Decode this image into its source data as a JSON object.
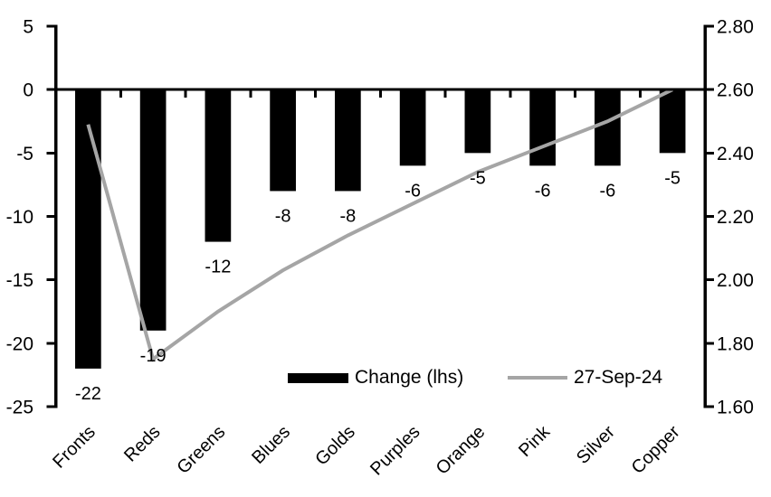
{
  "chart_data": {
    "type": "combo",
    "title": "",
    "categories": [
      "Fronts",
      "Reds",
      "Greens",
      "Blues",
      "Golds",
      "Purples",
      "Orange",
      "Pink",
      "Silver",
      "Copper"
    ],
    "series": [
      {
        "name": "Change (lhs)",
        "type": "bar",
        "axis": "left",
        "color": "#000000",
        "values": [
          -22,
          -19,
          -12,
          -8,
          -8,
          -6,
          -5,
          -6,
          -6,
          -5
        ],
        "data_labels": [
          "-22",
          "-19",
          "-12",
          "-8",
          "-8",
          "-6",
          "-5",
          "-6",
          "-6",
          "-5"
        ]
      },
      {
        "name": "27-Sep-24",
        "type": "line",
        "axis": "right",
        "color": "#a5a5a5",
        "values": [
          2.49,
          1.75,
          1.9,
          2.03,
          2.14,
          2.24,
          2.34,
          2.42,
          2.5,
          2.6
        ]
      }
    ],
    "left_axis": {
      "ticks": [
        "5",
        "0",
        "-5",
        "-10",
        "-15",
        "-20",
        "-25"
      ],
      "min": -25,
      "max": 5
    },
    "right_axis": {
      "ticks": [
        "2.80",
        "2.60",
        "2.40",
        "2.20",
        "2.00",
        "1.80",
        "1.60"
      ],
      "min": 1.6,
      "max": 2.8
    },
    "legend": {
      "position": "bottom-inside"
    },
    "grid": "off",
    "axis_color": "#000000"
  }
}
